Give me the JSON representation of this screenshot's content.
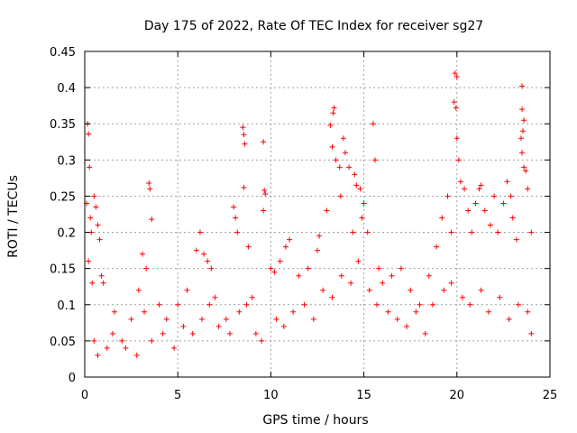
{
  "chart_data": {
    "type": "scatter",
    "title": "Day 175 of 2022, Rate Of TEC Index for receiver sg27",
    "xlabel": "GPS time / hours",
    "ylabel": "ROTI / TECUs",
    "xlim": [
      0,
      25
    ],
    "ylim": [
      0,
      0.45
    ],
    "x_ticks": [
      "0",
      "5",
      "10",
      "15",
      "20",
      "25"
    ],
    "y_ticks": [
      "0",
      "0.05",
      "0.1",
      "0.15",
      "0.2",
      "0.25",
      "0.3",
      "0.35",
      "0.4",
      "0.45"
    ],
    "grid": true,
    "marker": "plus",
    "series": [
      {
        "color": "#ff0000",
        "points": [
          [
            0.15,
            0.35
          ],
          [
            0.2,
            0.336
          ],
          [
            0.25,
            0.29
          ],
          [
            0.1,
            0.24
          ],
          [
            0.3,
            0.22
          ],
          [
            0.35,
            0.2
          ],
          [
            0.2,
            0.16
          ],
          [
            0.4,
            0.13
          ],
          [
            0.5,
            0.25
          ],
          [
            0.6,
            0.235
          ],
          [
            0.7,
            0.21
          ],
          [
            0.8,
            0.19
          ],
          [
            0.9,
            0.14
          ],
          [
            1.0,
            0.13
          ],
          [
            1.6,
            0.09
          ],
          [
            2.5,
            0.08
          ],
          [
            2.9,
            0.12
          ],
          [
            3.1,
            0.17
          ],
          [
            3.3,
            0.15
          ],
          [
            3.45,
            0.268
          ],
          [
            3.5,
            0.26
          ],
          [
            3.6,
            0.218
          ],
          [
            4.0,
            0.1
          ],
          [
            4.4,
            0.08
          ],
          [
            5.0,
            0.1
          ],
          [
            5.5,
            0.12
          ],
          [
            6.0,
            0.175
          ],
          [
            6.2,
            0.2
          ],
          [
            6.4,
            0.17
          ],
          [
            6.6,
            0.16
          ],
          [
            6.8,
            0.15
          ],
          [
            7.0,
            0.11
          ],
          [
            7.6,
            0.08
          ],
          [
            8.0,
            0.235
          ],
          [
            8.1,
            0.22
          ],
          [
            8.2,
            0.2
          ],
          [
            8.5,
            0.345
          ],
          [
            8.55,
            0.335
          ],
          [
            8.6,
            0.322
          ],
          [
            8.55,
            0.262
          ],
          [
            8.8,
            0.18
          ],
          [
            9.0,
            0.11
          ],
          [
            9.6,
            0.325
          ],
          [
            9.65,
            0.258
          ],
          [
            9.7,
            0.253
          ],
          [
            9.6,
            0.23
          ],
          [
            10.0,
            0.15
          ],
          [
            10.2,
            0.145
          ],
          [
            10.5,
            0.16
          ],
          [
            10.8,
            0.18
          ],
          [
            11.0,
            0.19
          ],
          [
            11.5,
            0.14
          ],
          [
            12.0,
            0.15
          ],
          [
            12.5,
            0.175
          ],
          [
            12.6,
            0.195
          ],
          [
            13.0,
            0.23
          ],
          [
            13.2,
            0.348
          ],
          [
            13.4,
            0.372
          ],
          [
            13.35,
            0.365
          ],
          [
            13.3,
            0.318
          ],
          [
            13.5,
            0.3
          ],
          [
            13.7,
            0.29
          ],
          [
            13.75,
            0.25
          ],
          [
            13.9,
            0.33
          ],
          [
            14.0,
            0.31
          ],
          [
            14.2,
            0.29
          ],
          [
            14.4,
            0.2
          ],
          [
            14.5,
            0.28
          ],
          [
            14.6,
            0.265
          ],
          [
            14.8,
            0.26
          ],
          [
            14.9,
            0.22
          ],
          [
            15.0,
            0.24
          ],
          [
            15.2,
            0.2
          ],
          [
            15.5,
            0.35
          ],
          [
            15.6,
            0.3
          ],
          [
            15.8,
            0.15
          ],
          [
            16.0,
            0.13
          ],
          [
            16.5,
            0.14
          ],
          [
            17.0,
            0.15
          ],
          [
            17.5,
            0.12
          ],
          [
            18.0,
            0.1
          ],
          [
            18.5,
            0.14
          ],
          [
            18.9,
            0.18
          ],
          [
            19.2,
            0.22
          ],
          [
            19.5,
            0.25
          ],
          [
            19.7,
            0.2
          ],
          [
            19.9,
            0.42
          ],
          [
            20.0,
            0.415
          ],
          [
            19.85,
            0.38
          ],
          [
            19.95,
            0.372
          ],
          [
            20.0,
            0.33
          ],
          [
            20.1,
            0.3
          ],
          [
            20.2,
            0.27
          ],
          [
            20.4,
            0.26
          ],
          [
            20.6,
            0.23
          ],
          [
            20.8,
            0.2
          ],
          [
            21.0,
            0.24
          ],
          [
            21.2,
            0.26
          ],
          [
            21.3,
            0.265
          ],
          [
            21.5,
            0.23
          ],
          [
            21.8,
            0.21
          ],
          [
            22.0,
            0.25
          ],
          [
            22.2,
            0.2
          ],
          [
            22.5,
            0.24
          ],
          [
            22.7,
            0.27
          ],
          [
            22.9,
            0.25
          ],
          [
            23.0,
            0.22
          ],
          [
            23.2,
            0.19
          ],
          [
            23.5,
            0.37
          ],
          [
            23.6,
            0.355
          ],
          [
            23.55,
            0.34
          ],
          [
            23.45,
            0.33
          ],
          [
            23.5,
            0.31
          ],
          [
            23.6,
            0.29
          ],
          [
            23.7,
            0.285
          ],
          [
            23.5,
            0.402
          ],
          [
            23.8,
            0.26
          ],
          [
            24.0,
            0.2
          ],
          [
            0.5,
            0.05
          ],
          [
            0.7,
            0.03
          ],
          [
            1.2,
            0.04
          ],
          [
            1.5,
            0.06
          ],
          [
            2.0,
            0.05
          ],
          [
            2.2,
            0.04
          ],
          [
            2.8,
            0.03
          ],
          [
            3.2,
            0.09
          ],
          [
            3.6,
            0.05
          ],
          [
            4.2,
            0.06
          ],
          [
            4.8,
            0.04
          ],
          [
            5.3,
            0.07
          ],
          [
            5.8,
            0.06
          ],
          [
            6.3,
            0.08
          ],
          [
            6.7,
            0.1
          ],
          [
            7.2,
            0.07
          ],
          [
            7.8,
            0.06
          ],
          [
            8.3,
            0.09
          ],
          [
            8.7,
            0.1
          ],
          [
            9.2,
            0.06
          ],
          [
            9.5,
            0.05
          ],
          [
            10.3,
            0.08
          ],
          [
            10.7,
            0.07
          ],
          [
            11.2,
            0.09
          ],
          [
            11.8,
            0.1
          ],
          [
            12.3,
            0.08
          ],
          [
            12.8,
            0.12
          ],
          [
            13.3,
            0.11
          ],
          [
            13.8,
            0.14
          ],
          [
            14.3,
            0.13
          ],
          [
            14.7,
            0.16
          ],
          [
            15.3,
            0.12
          ],
          [
            15.7,
            0.1
          ],
          [
            16.3,
            0.09
          ],
          [
            16.8,
            0.08
          ],
          [
            17.3,
            0.07
          ],
          [
            17.8,
            0.09
          ],
          [
            18.3,
            0.06
          ],
          [
            18.7,
            0.1
          ],
          [
            19.3,
            0.12
          ],
          [
            19.7,
            0.13
          ],
          [
            20.3,
            0.11
          ],
          [
            20.7,
            0.1
          ],
          [
            21.3,
            0.12
          ],
          [
            21.7,
            0.09
          ],
          [
            22.3,
            0.11
          ],
          [
            22.8,
            0.08
          ],
          [
            23.3,
            0.1
          ],
          [
            23.8,
            0.09
          ],
          [
            24.0,
            0.06
          ]
        ]
      }
    ]
  }
}
